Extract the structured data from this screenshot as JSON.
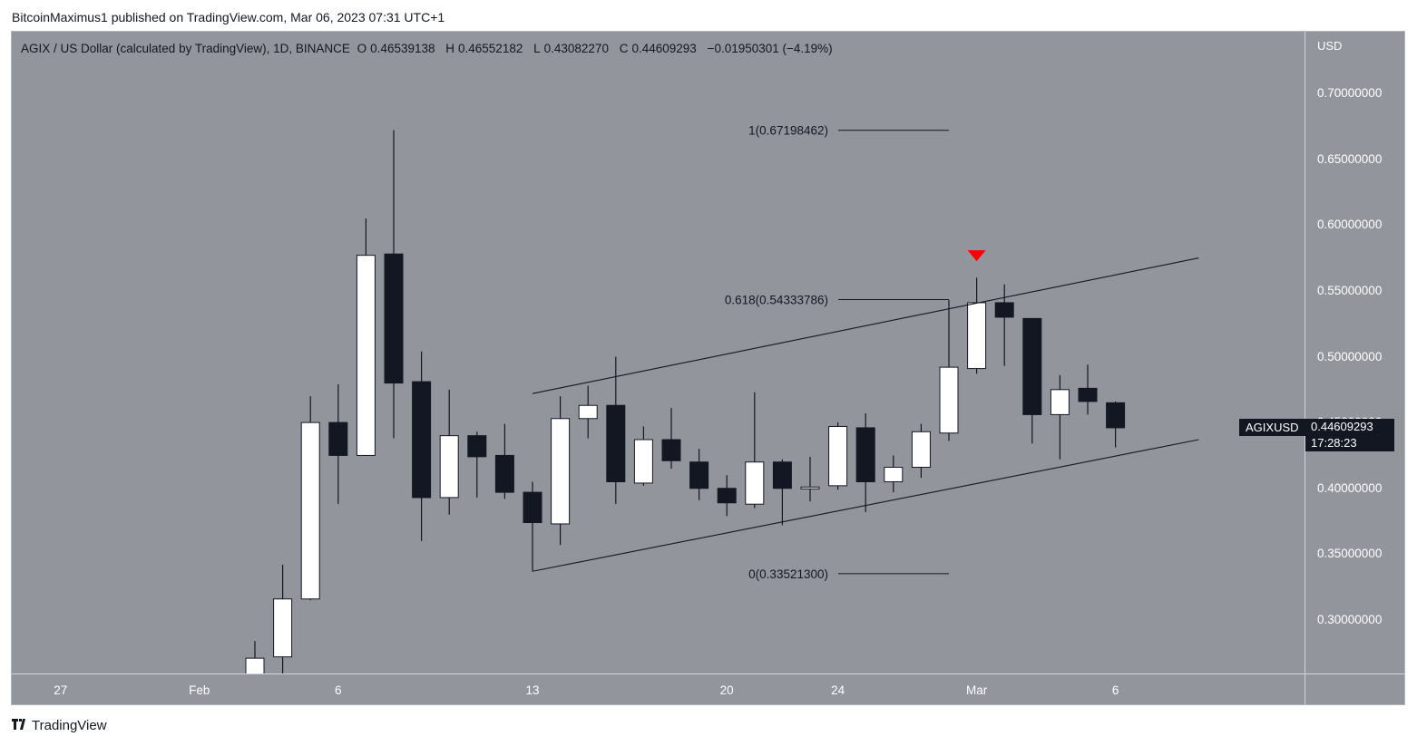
{
  "publisher_line": "BitcoinMaximus1 published on TradingView.com, Mar 06, 2023 07:31 UTC+1",
  "footer_brand": "TradingView",
  "footer_logo_icon": "tradingview-logo-icon",
  "legend": {
    "title": "AGIX / US Dollar (calculated by TradingView), 1D, BINANCE",
    "o_key": "O",
    "o_val": "0.46539138",
    "h_key": "H",
    "h_val": "0.46552182",
    "l_key": "L",
    "l_val": "0.43082270",
    "c_key": "C",
    "c_val": "0.44609293",
    "change": "−0.01950301 (−4.19%)"
  },
  "price_axis": {
    "currency": "USD",
    "symbol_badge": "AGIXUSD",
    "last_price": "0.44609293",
    "countdown": "17:28:23"
  },
  "colors": {
    "background": "#93959d",
    "bull": "#ffffff",
    "bear": "#131722",
    "marker": "#ff0000"
  },
  "chart_data": {
    "type": "candlestick",
    "symbol": "AGIXUSD",
    "interval": "1D",
    "ylim": [
      0.26,
      0.73
    ],
    "y_ticks": [
      {
        "value": 0.3,
        "label": "0.30000000"
      },
      {
        "value": 0.35,
        "label": "0.35000000"
      },
      {
        "value": 0.4,
        "label": "0.40000000"
      },
      {
        "value": 0.45,
        "label": "0.45000000"
      },
      {
        "value": 0.5,
        "label": "0.50000000"
      },
      {
        "value": 0.55,
        "label": "0.55000000"
      },
      {
        "value": 0.6,
        "label": "0.60000000"
      },
      {
        "value": 0.65,
        "label": "0.65000000"
      },
      {
        "value": 0.7,
        "label": "0.70000000"
      }
    ],
    "x_ticks": [
      {
        "date": "2023-01-27",
        "label": "27"
      },
      {
        "date": "2023-02-01",
        "label": "Feb"
      },
      {
        "date": "2023-02-06",
        "label": "6"
      },
      {
        "date": "2023-02-13",
        "label": "13"
      },
      {
        "date": "2023-02-20",
        "label": "20"
      },
      {
        "date": "2023-02-24",
        "label": "24"
      },
      {
        "date": "2023-03-01",
        "label": "Mar"
      },
      {
        "date": "2023-03-06",
        "label": "6"
      }
    ],
    "candles": [
      {
        "date": "2023-02-03",
        "o": 0.254,
        "h": 0.284,
        "l": 0.251,
        "c": 0.271
      },
      {
        "date": "2023-02-04",
        "o": 0.272,
        "h": 0.342,
        "l": 0.259,
        "c": 0.316
      },
      {
        "date": "2023-02-05",
        "o": 0.316,
        "h": 0.47,
        "l": 0.315,
        "c": 0.45
      },
      {
        "date": "2023-02-06",
        "o": 0.45,
        "h": 0.479,
        "l": 0.388,
        "c": 0.425
      },
      {
        "date": "2023-02-07",
        "o": 0.425,
        "h": 0.605,
        "l": 0.425,
        "c": 0.577
      },
      {
        "date": "2023-02-08",
        "o": 0.578,
        "h": 0.672,
        "l": 0.438,
        "c": 0.48
      },
      {
        "date": "2023-02-09",
        "o": 0.481,
        "h": 0.504,
        "l": 0.36,
        "c": 0.393
      },
      {
        "date": "2023-02-10",
        "o": 0.393,
        "h": 0.475,
        "l": 0.38,
        "c": 0.44
      },
      {
        "date": "2023-02-11",
        "o": 0.44,
        "h": 0.443,
        "l": 0.393,
        "c": 0.424
      },
      {
        "date": "2023-02-12",
        "o": 0.425,
        "h": 0.449,
        "l": 0.392,
        "c": 0.397
      },
      {
        "date": "2023-02-13",
        "o": 0.397,
        "h": 0.405,
        "l": 0.337,
        "c": 0.374
      },
      {
        "date": "2023-02-14",
        "o": 0.373,
        "h": 0.47,
        "l": 0.357,
        "c": 0.453
      },
      {
        "date": "2023-02-15",
        "o": 0.453,
        "h": 0.478,
        "l": 0.438,
        "c": 0.463
      },
      {
        "date": "2023-02-16",
        "o": 0.463,
        "h": 0.5,
        "l": 0.388,
        "c": 0.405
      },
      {
        "date": "2023-02-17",
        "o": 0.404,
        "h": 0.447,
        "l": 0.402,
        "c": 0.437
      },
      {
        "date": "2023-02-18",
        "o": 0.437,
        "h": 0.461,
        "l": 0.415,
        "c": 0.421
      },
      {
        "date": "2023-02-19",
        "o": 0.42,
        "h": 0.43,
        "l": 0.391,
        "c": 0.4
      },
      {
        "date": "2023-02-20",
        "o": 0.4,
        "h": 0.41,
        "l": 0.379,
        "c": 0.389
      },
      {
        "date": "2023-02-21",
        "o": 0.388,
        "h": 0.473,
        "l": 0.385,
        "c": 0.42
      },
      {
        "date": "2023-02-22",
        "o": 0.42,
        "h": 0.422,
        "l": 0.372,
        "c": 0.4
      },
      {
        "date": "2023-02-23",
        "o": 0.4,
        "h": 0.424,
        "l": 0.39,
        "c": 0.401
      },
      {
        "date": "2023-02-24",
        "o": 0.402,
        "h": 0.45,
        "l": 0.399,
        "c": 0.447
      },
      {
        "date": "2023-02-25",
        "o": 0.446,
        "h": 0.457,
        "l": 0.382,
        "c": 0.405
      },
      {
        "date": "2023-02-26",
        "o": 0.405,
        "h": 0.425,
        "l": 0.397,
        "c": 0.416
      },
      {
        "date": "2023-02-27",
        "o": 0.416,
        "h": 0.449,
        "l": 0.408,
        "c": 0.443
      },
      {
        "date": "2023-02-28",
        "o": 0.442,
        "h": 0.543,
        "l": 0.436,
        "c": 0.492
      },
      {
        "date": "2023-03-01",
        "o": 0.491,
        "h": 0.56,
        "l": 0.487,
        "c": 0.541
      },
      {
        "date": "2023-03-02",
        "o": 0.541,
        "h": 0.555,
        "l": 0.493,
        "c": 0.53
      },
      {
        "date": "2023-03-03",
        "o": 0.529,
        "h": 0.529,
        "l": 0.434,
        "c": 0.456
      },
      {
        "date": "2023-03-04",
        "o": 0.456,
        "h": 0.486,
        "l": 0.422,
        "c": 0.475
      },
      {
        "date": "2023-03-05",
        "o": 0.476,
        "h": 0.494,
        "l": 0.456,
        "c": 0.466
      },
      {
        "date": "2023-03-06",
        "o": 0.465,
        "h": 0.466,
        "l": 0.431,
        "c": 0.446
      }
    ],
    "channel": {
      "upper": {
        "from": {
          "date": "2023-02-13",
          "price": 0.472
        },
        "to": {
          "date": "2023-03-09",
          "price": 0.575
        }
      },
      "lower": {
        "from": {
          "date": "2023-02-13",
          "price": 0.337
        },
        "to": {
          "date": "2023-03-09",
          "price": 0.437
        }
      }
    },
    "fibonacci": [
      {
        "level": "1",
        "price": 0.67198462,
        "label": "1(0.67198462)"
      },
      {
        "level": "0.618",
        "price": 0.54333786,
        "label": "0.618(0.54333786)"
      },
      {
        "level": "0",
        "price": 0.335213,
        "label": "0(0.33521300)"
      }
    ],
    "marker": {
      "date": "2023-03-01",
      "price": 0.576,
      "shape": "down-triangle"
    }
  }
}
